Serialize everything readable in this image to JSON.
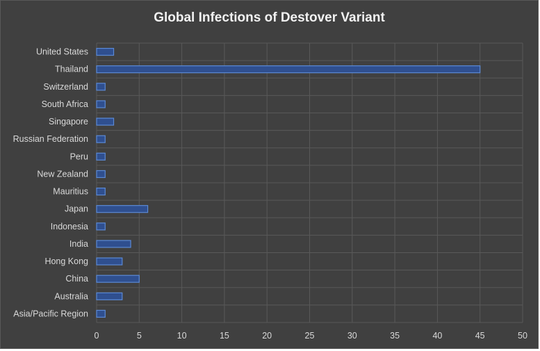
{
  "chart_data": {
    "type": "bar",
    "orientation": "horizontal",
    "title": "Global Infections of Destover Variant",
    "xlabel": "",
    "ylabel": "",
    "xlim": [
      0,
      50
    ],
    "x_ticks": [
      0,
      5,
      10,
      15,
      20,
      25,
      30,
      35,
      40,
      45,
      50
    ],
    "grid": true,
    "legend": "none",
    "categories": [
      "United States",
      "Thailand",
      "Switzerland",
      "South Africa",
      "Singapore",
      "Russian Federation",
      "Peru",
      "New Zealand",
      "Mauritius",
      "Japan",
      "Indonesia",
      "India",
      "Hong Kong",
      "China",
      "Australia",
      "Asia/Pacific Region"
    ],
    "values": [
      2,
      45,
      1,
      1,
      2,
      1,
      1,
      1,
      1,
      6,
      1,
      4,
      3,
      5,
      3,
      1
    ]
  },
  "colors": {
    "background": "#404040",
    "bar_fill": "#2f4f8f",
    "bar_edge": "#5b8ad6",
    "gridline": "#595959",
    "text": "#d9d9d9"
  }
}
